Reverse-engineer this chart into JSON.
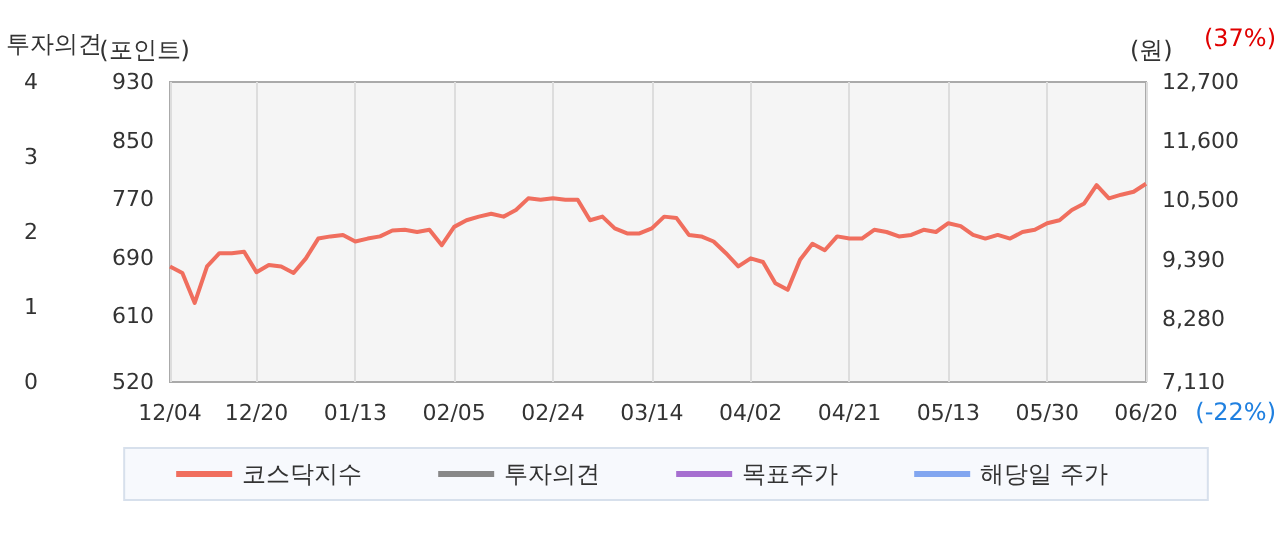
{
  "chart_data": {
    "type": "line",
    "categories": [
      "12/04",
      null,
      null,
      null,
      null,
      null,
      null,
      "12/20",
      null,
      null,
      null,
      null,
      null,
      null,
      null,
      "01/13",
      null,
      null,
      null,
      null,
      null,
      null,
      null,
      "02/05",
      null,
      null,
      null,
      null,
      null,
      null,
      null,
      "02/24",
      null,
      null,
      null,
      null,
      null,
      null,
      null,
      "03/14",
      null,
      null,
      null,
      null,
      null,
      null,
      null,
      "04/02",
      null,
      null,
      null,
      null,
      null,
      null,
      null,
      "04/21",
      null,
      null,
      null,
      null,
      null,
      null,
      null,
      "05/13",
      null,
      null,
      null,
      null,
      null,
      null,
      null,
      "05/30",
      null,
      null,
      null,
      null,
      null,
      null,
      null,
      "06/20"
    ],
    "series": [
      {
        "name": "코스닥지수",
        "color": "#f06e5e",
        "values": [
          678,
          669,
          628,
          678,
          696,
          696,
          698,
          670,
          680,
          678,
          669,
          689,
          716,
          719,
          721,
          712,
          716,
          719,
          727,
          728,
          725,
          728,
          707,
          732,
          741,
          746,
          750,
          746,
          755,
          771,
          769,
          771,
          769,
          769,
          741,
          746,
          730,
          723,
          723,
          730,
          746,
          744,
          721,
          719,
          712,
          696,
          678,
          689,
          684,
          655,
          646,
          687,
          709,
          700,
          719,
          716,
          716,
          728,
          725,
          719,
          721,
          728,
          725,
          737,
          733,
          721,
          716,
          721,
          716,
          725,
          728,
          737,
          741,
          755,
          764,
          789,
          771,
          776,
          780,
          791
        ]
      },
      {
        "name": "투자의견",
        "color": "#888888",
        "values": [
          null,
          null,
          null,
          null,
          null,
          null,
          null,
          null,
          null,
          null,
          null,
          null,
          null,
          null,
          null,
          null,
          null,
          null,
          null,
          null,
          null,
          null,
          null,
          null,
          null,
          null,
          null,
          null,
          null,
          null,
          null,
          null,
          null,
          null,
          null,
          null,
          null,
          null,
          null,
          null,
          null,
          null,
          null,
          null,
          null,
          null,
          null,
          null,
          null,
          null,
          null,
          null,
          null,
          null,
          null,
          null,
          null,
          null,
          null,
          null,
          null,
          null,
          null,
          null,
          null,
          null,
          null,
          null,
          null,
          null,
          null,
          null,
          null,
          null,
          null,
          null,
          null,
          null,
          null,
          null
        ]
      },
      {
        "name": "목표주가",
        "color": "#a66fd0",
        "values": [
          null,
          null,
          null,
          null,
          null,
          null,
          null,
          null,
          null,
          null,
          null,
          null,
          null,
          null,
          null,
          null,
          null,
          null,
          null,
          null,
          null,
          null,
          null,
          null,
          null,
          null,
          null,
          null,
          null,
          null,
          null,
          null,
          null,
          null,
          null,
          null,
          null,
          null,
          null,
          null,
          null,
          null,
          null,
          null,
          null,
          null,
          null,
          null,
          null,
          null,
          null,
          null,
          null,
          null,
          null,
          null,
          null,
          null,
          null,
          null,
          null,
          null,
          null,
          null,
          null,
          null,
          null,
          null,
          null,
          null,
          null,
          null,
          null,
          null,
          null,
          null,
          null,
          null,
          null,
          null
        ]
      },
      {
        "name": "해당일 주가",
        "color": "#82a6f0",
        "values": [
          null,
          null,
          null,
          null,
          null,
          null,
          null,
          null,
          null,
          null,
          null,
          null,
          null,
          null,
          null,
          null,
          null,
          null,
          null,
          null,
          null,
          null,
          null,
          null,
          null,
          null,
          null,
          null,
          null,
          null,
          null,
          null,
          null,
          null,
          null,
          null,
          null,
          null,
          null,
          null,
          null,
          null,
          null,
          null,
          null,
          null,
          null,
          null,
          null,
          null,
          null,
          null,
          null,
          null,
          null,
          null,
          null,
          null,
          null,
          null,
          null,
          null,
          null,
          null,
          null,
          null,
          null,
          null,
          null,
          null,
          null,
          null,
          null,
          null,
          null,
          null,
          null,
          null,
          null,
          null
        ]
      }
    ],
    "ylabel": "(포인트)",
    "ylim": [
      520,
      930
    ],
    "yticks": [
      520,
      610,
      690,
      770,
      850,
      930
    ],
    "y2label": "(원)",
    "y2lim": [
      7110,
      12700
    ],
    "y2ticks": [
      {
        "value": 7110,
        "label": "7,110"
      },
      {
        "value": 8280,
        "label": "8,280"
      },
      {
        "value": 9390,
        "label": "9,390"
      },
      {
        "value": 10500,
        "label": "10,500"
      },
      {
        "value": 11600,
        "label": "11,600"
      },
      {
        "value": 12700,
        "label": "12,700"
      }
    ],
    "y3label": "투자의견",
    "y3lim": [
      0,
      4
    ],
    "y3ticks": [
      0,
      1,
      2,
      3,
      4
    ],
    "annotations": [
      "(37%)",
      "(-22%)"
    ],
    "grid": "x",
    "legend": "bottom",
    "marker": "none",
    "line_style": "solid"
  }
}
